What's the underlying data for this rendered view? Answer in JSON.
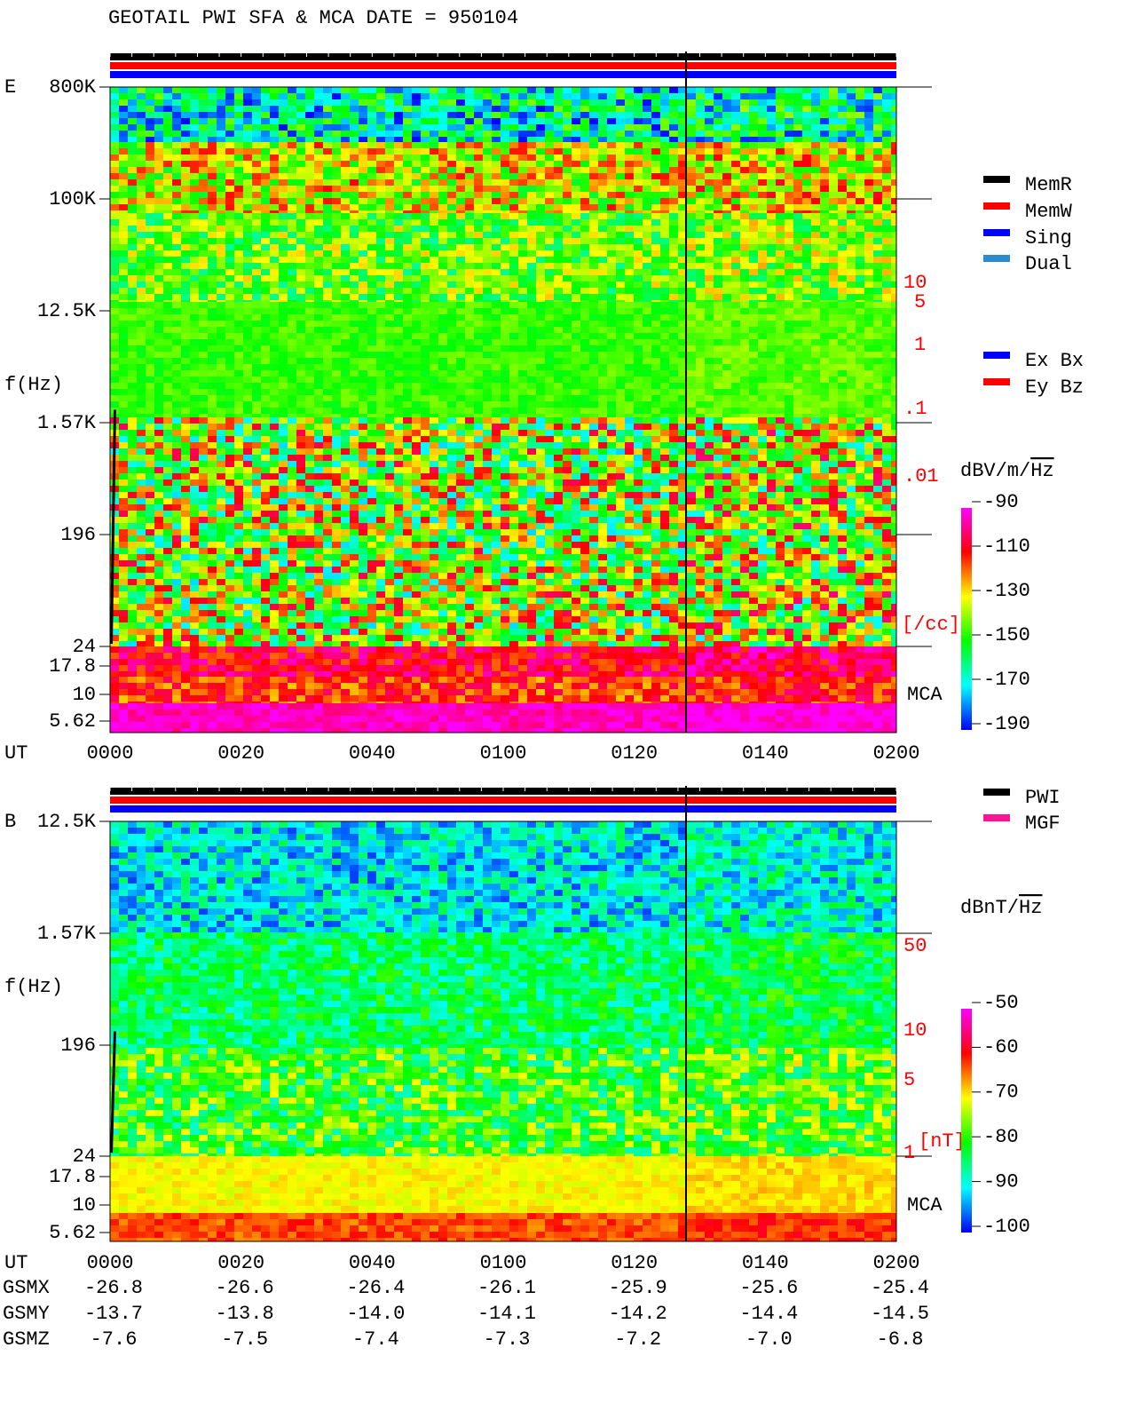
{
  "title": "GEOTAIL  PWI SFA & MCA   DATE = 950104",
  "x_axis": {
    "label": "UT",
    "ticks": [
      "0000",
      "0020",
      "0040",
      "0100",
      "0120",
      "0140",
      "0200"
    ]
  },
  "panels": [
    {
      "label": "E",
      "y_axis_label": "f(Hz)",
      "yticks": [
        "800K",
        "100K",
        "12.5K",
        "1.57K",
        "196",
        "24",
        "17.8",
        "10",
        "5.62"
      ],
      "right_ticks": [
        "10",
        "5",
        "1",
        ".1",
        ".01",
        "[/cc]"
      ],
      "mca_label": "MCA",
      "legends": [
        [
          {
            "name": "MemR",
            "color": "#000000"
          },
          {
            "name": "MemW",
            "color": "#ff0000"
          },
          {
            "name": "Sing",
            "color": "#0000ff"
          },
          {
            "name": "Dual",
            "color": "#2a8ccc"
          }
        ],
        [
          {
            "name": "Ex Bx",
            "color": "#0000ff"
          },
          {
            "name": "Ey Bz",
            "color": "#ff0000"
          }
        ]
      ],
      "colorbar": {
        "unit": "dBV/m/",
        "root": "Hz",
        "ticks": [
          -90,
          -110,
          -130,
          -150,
          -170,
          -190
        ]
      }
    },
    {
      "label": "B",
      "y_axis_label": "f(Hz)",
      "yticks": [
        "12.5K",
        "1.57K",
        "196",
        "24",
        "17.8",
        "10",
        "5.62"
      ],
      "right_ticks": [
        "50",
        "10",
        "5",
        "1",
        "[nT]"
      ],
      "mca_label": "MCA",
      "legends": [
        [
          {
            "name": "PWI",
            "color": "#000000"
          },
          {
            "name": "MGF",
            "color": "#ff1493"
          }
        ]
      ],
      "colorbar": {
        "unit": "dBnT/",
        "root": "Hz",
        "ticks": [
          -50,
          -60,
          -70,
          -80,
          -90,
          -100
        ]
      }
    }
  ],
  "orbit": [
    {
      "label": "GSMX",
      "values": [
        "-26.8",
        "-26.6",
        "-26.4",
        "-26.1",
        "-25.9",
        "-25.6",
        "-25.4"
      ]
    },
    {
      "label": "GSMY",
      "values": [
        "-13.7",
        "-13.8",
        "-14.0",
        "-14.1",
        "-14.2",
        "-14.4",
        "-14.5"
      ]
    },
    {
      "label": "GSMZ",
      "values": [
        "-7.6",
        "-7.5",
        "-7.4",
        "-7.3",
        "-7.2",
        "-7.0",
        "-6.8"
      ]
    }
  ]
}
